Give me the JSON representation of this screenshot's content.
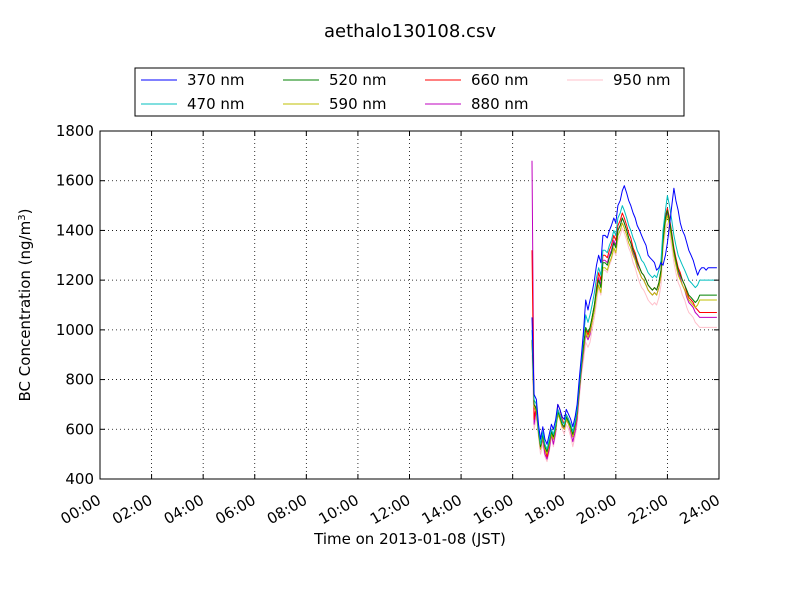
{
  "chart_data": {
    "type": "line",
    "title": "aethalo130108.csv",
    "xlabel": "Time on 2013-01-08 (JST)",
    "ylabel": "BC Concentration (ng/m",
    "ylabel_sup": "3",
    "ylabel_end": ")",
    "xlim": [
      0,
      24
    ],
    "ylim": [
      400,
      1800
    ],
    "grid": true,
    "legend_position": "top",
    "x_ticks": [
      0,
      2,
      4,
      6,
      8,
      10,
      12,
      14,
      16,
      18,
      20,
      22,
      24
    ],
    "x_tick_labels": [
      "00:00",
      "02:00",
      "04:00",
      "06:00",
      "08:00",
      "10:00",
      "12:00",
      "14:00",
      "16:00",
      "18:00",
      "20:00",
      "22:00",
      "24:00"
    ],
    "y_ticks": [
      400,
      600,
      800,
      1000,
      1200,
      1400,
      1600,
      1800
    ],
    "y_tick_labels": [
      "400",
      "600",
      "800",
      "1000",
      "1200",
      "1400",
      "1600",
      "1800"
    ],
    "x": [
      16.75,
      16.83,
      16.92,
      17.0,
      17.08,
      17.17,
      17.25,
      17.33,
      17.42,
      17.5,
      17.58,
      17.67,
      17.75,
      17.83,
      17.92,
      18.0,
      18.08,
      18.17,
      18.25,
      18.33,
      18.42,
      18.5,
      18.58,
      18.67,
      18.75,
      18.83,
      18.92,
      19.0,
      19.08,
      19.17,
      19.25,
      19.33,
      19.42,
      19.5,
      19.58,
      19.67,
      19.75,
      19.83,
      19.92,
      20.0,
      20.08,
      20.17,
      20.25,
      20.33,
      20.42,
      20.5,
      20.58,
      20.67,
      20.75,
      20.83,
      20.92,
      21.0,
      21.08,
      21.17,
      21.25,
      21.33,
      21.42,
      21.5,
      21.58,
      21.67,
      21.75,
      21.83,
      21.92,
      22.0,
      22.08,
      22.17,
      22.25,
      22.33,
      22.42,
      22.5,
      22.58,
      22.67,
      22.75,
      22.83,
      22.92,
      23.0,
      23.08,
      23.17,
      23.25,
      23.33,
      23.42,
      23.5,
      23.58,
      23.67,
      23.75,
      23.83,
      23.92
    ],
    "series": [
      {
        "name": "370 nm",
        "color": "#0000ff",
        "values": [
          1050,
          740,
          720,
          620,
          560,
          610,
          560,
          540,
          580,
          620,
          600,
          640,
          700,
          680,
          650,
          640,
          680,
          660,
          640,
          610,
          650,
          700,
          800,
          900,
          1000,
          1120,
          1080,
          1120,
          1150,
          1200,
          1260,
          1300,
          1270,
          1380,
          1380,
          1370,
          1400,
          1420,
          1450,
          1430,
          1500,
          1520,
          1560,
          1580,
          1550,
          1520,
          1500,
          1470,
          1450,
          1420,
          1400,
          1380,
          1360,
          1340,
          1300,
          1290,
          1280,
          1270,
          1240,
          1250,
          1270,
          1260,
          1300,
          1350,
          1420,
          1500,
          1570,
          1520,
          1480,
          1430,
          1400,
          1380,
          1350,
          1320,
          1300,
          1280,
          1250,
          1220,
          1240,
          1250,
          1250,
          1240,
          1250,
          1250,
          1250,
          1250,
          1250
        ]
      },
      {
        "name": "470 nm",
        "color": "#00bfbf",
        "values": [
          1000,
          720,
          700,
          600,
          540,
          590,
          540,
          520,
          560,
          600,
          580,
          620,
          680,
          660,
          630,
          620,
          660,
          640,
          620,
          590,
          630,
          680,
          780,
          880,
          980,
          1060,
          1030,
          1060,
          1100,
          1150,
          1210,
          1250,
          1220,
          1320,
          1320,
          1310,
          1340,
          1360,
          1400,
          1380,
          1450,
          1470,
          1500,
          1480,
          1450,
          1420,
          1400,
          1370,
          1350,
          1320,
          1300,
          1280,
          1270,
          1250,
          1230,
          1220,
          1210,
          1220,
          1210,
          1240,
          1280,
          1400,
          1480,
          1540,
          1500,
          1440,
          1380,
          1340,
          1300,
          1280,
          1260,
          1240,
          1220,
          1200,
          1190,
          1180,
          1170,
          1180,
          1200,
          1200,
          1200,
          1200,
          1200,
          1200,
          1200,
          1200,
          1200
        ]
      },
      {
        "name": "520 nm",
        "color": "#008000",
        "values": [
          960,
          700,
          680,
          590,
          530,
          580,
          530,
          510,
          550,
          590,
          570,
          610,
          670,
          650,
          620,
          610,
          650,
          630,
          610,
          580,
          620,
          670,
          760,
          860,
          940,
          1010,
          990,
          1010,
          1050,
          1100,
          1160,
          1200,
          1170,
          1270,
          1270,
          1260,
          1290,
          1310,
          1350,
          1330,
          1400,
          1420,
          1450,
          1430,
          1400,
          1370,
          1350,
          1320,
          1300,
          1270,
          1250,
          1230,
          1220,
          1200,
          1180,
          1170,
          1160,
          1170,
          1160,
          1190,
          1240,
          1360,
          1450,
          1480,
          1440,
          1380,
          1320,
          1280,
          1240,
          1220,
          1200,
          1180,
          1160,
          1140,
          1130,
          1120,
          1110,
          1120,
          1140,
          1140,
          1140,
          1140,
          1140,
          1140,
          1140,
          1140,
          1140
        ]
      },
      {
        "name": "590 nm",
        "color": "#bfbf00",
        "values": [
          960,
          690,
          670,
          580,
          520,
          570,
          520,
          500,
          540,
          580,
          560,
          600,
          660,
          640,
          610,
          600,
          640,
          620,
          600,
          570,
          610,
          660,
          750,
          850,
          920,
          990,
          970,
          990,
          1030,
          1080,
          1140,
          1180,
          1150,
          1250,
          1250,
          1240,
          1270,
          1290,
          1330,
          1310,
          1380,
          1400,
          1430,
          1410,
          1380,
          1350,
          1330,
          1300,
          1280,
          1250,
          1230,
          1210,
          1200,
          1180,
          1160,
          1150,
          1140,
          1150,
          1140,
          1170,
          1220,
          1340,
          1430,
          1460,
          1420,
          1360,
          1300,
          1260,
          1220,
          1200,
          1180,
          1160,
          1140,
          1120,
          1110,
          1100,
          1090,
          1100,
          1120,
          1120,
          1120,
          1120,
          1120,
          1120,
          1120,
          1120,
          1120
        ]
      },
      {
        "name": "660 nm",
        "color": "#ff0000",
        "values": [
          1320,
          640,
          700,
          600,
          540,
          580,
          520,
          490,
          540,
          600,
          560,
          610,
          700,
          680,
          640,
          620,
          660,
          640,
          610,
          570,
          610,
          660,
          760,
          860,
          930,
          1000,
          980,
          1000,
          1050,
          1100,
          1170,
          1230,
          1200,
          1300,
          1300,
          1290,
          1320,
          1340,
          1380,
          1360,
          1420,
          1440,
          1470,
          1450,
          1420,
          1390,
          1370,
          1330,
          1310,
          1280,
          1250,
          1230,
          1220,
          1200,
          1180,
          1170,
          1160,
          1170,
          1160,
          1190,
          1240,
          1380,
          1460,
          1490,
          1450,
          1390,
          1330,
          1290,
          1250,
          1230,
          1200,
          1180,
          1150,
          1130,
          1120,
          1110,
          1090,
          1080,
          1070,
          1070,
          1070,
          1070,
          1070,
          1070,
          1070,
          1070,
          1070
        ]
      },
      {
        "name": "880 nm",
        "color": "#bf00bf",
        "values": [
          1680,
          620,
          680,
          590,
          520,
          560,
          500,
          480,
          520,
          580,
          540,
          590,
          680,
          660,
          620,
          600,
          640,
          620,
          590,
          550,
          590,
          640,
          740,
          840,
          910,
          980,
          960,
          980,
          1030,
          1080,
          1150,
          1210,
          1180,
          1280,
          1280,
          1270,
          1300,
          1320,
          1360,
          1340,
          1400,
          1420,
          1450,
          1430,
          1400,
          1370,
          1350,
          1310,
          1290,
          1260,
          1230,
          1210,
          1200,
          1180,
          1160,
          1150,
          1140,
          1150,
          1140,
          1170,
          1220,
          1360,
          1440,
          1470,
          1430,
          1370,
          1310,
          1270,
          1230,
          1210,
          1180,
          1160,
          1130,
          1110,
          1100,
          1090,
          1070,
          1060,
          1050,
          1050,
          1050,
          1050,
          1050,
          1050,
          1050,
          1050,
          1050
        ]
      },
      {
        "name": "950 nm",
        "color": "#ffc0cb",
        "values": [
          900,
          600,
          650,
          570,
          500,
          540,
          490,
          470,
          510,
          570,
          530,
          580,
          660,
          640,
          600,
          580,
          620,
          600,
          570,
          530,
          570,
          620,
          720,
          820,
          880,
          950,
          930,
          950,
          1000,
          1050,
          1110,
          1170,
          1140,
          1240,
          1240,
          1230,
          1260,
          1280,
          1320,
          1300,
          1360,
          1380,
          1410,
          1390,
          1360,
          1330,
          1310,
          1270,
          1250,
          1220,
          1190,
          1170,
          1160,
          1140,
          1120,
          1110,
          1100,
          1110,
          1100,
          1130,
          1180,
          1320,
          1400,
          1430,
          1390,
          1330,
          1270,
          1230,
          1190,
          1170,
          1140,
          1120,
          1090,
          1070,
          1060,
          1050,
          1030,
          1020,
          1010,
          1010,
          1010,
          1010,
          1010,
          1010,
          1010,
          1010,
          1010
        ]
      }
    ]
  }
}
